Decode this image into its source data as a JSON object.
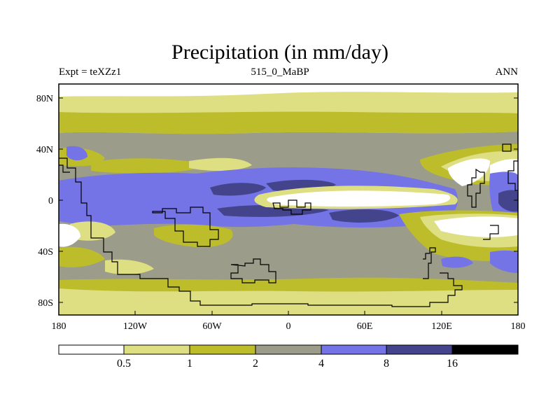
{
  "title": "Precipitation (in mm/day)",
  "left_label": "Expt = teXZz1",
  "center_label": "515_0_MaBP",
  "right_label": "ANN",
  "y_ticks": [
    "80N",
    "40N",
    "0",
    "40S",
    "80S"
  ],
  "x_ticks": [
    "180",
    "120W",
    "60W",
    "0",
    "60E",
    "120E",
    "180"
  ],
  "colorbar": {
    "labels": [
      "0.5",
      "1",
      "2",
      "4",
      "8",
      "16"
    ],
    "colors": [
      "#ffffff",
      "#dede82",
      "#bdbd2c",
      "#9c9c8a",
      "#7474e6",
      "#44448c",
      "#000000"
    ]
  },
  "palette": {
    "white": "#ffffff",
    "light_yellow": "#dede82",
    "olive": "#bdbd2c",
    "gray": "#9c9c8a",
    "blue": "#7474e6",
    "dark_blue": "#44448c"
  }
}
